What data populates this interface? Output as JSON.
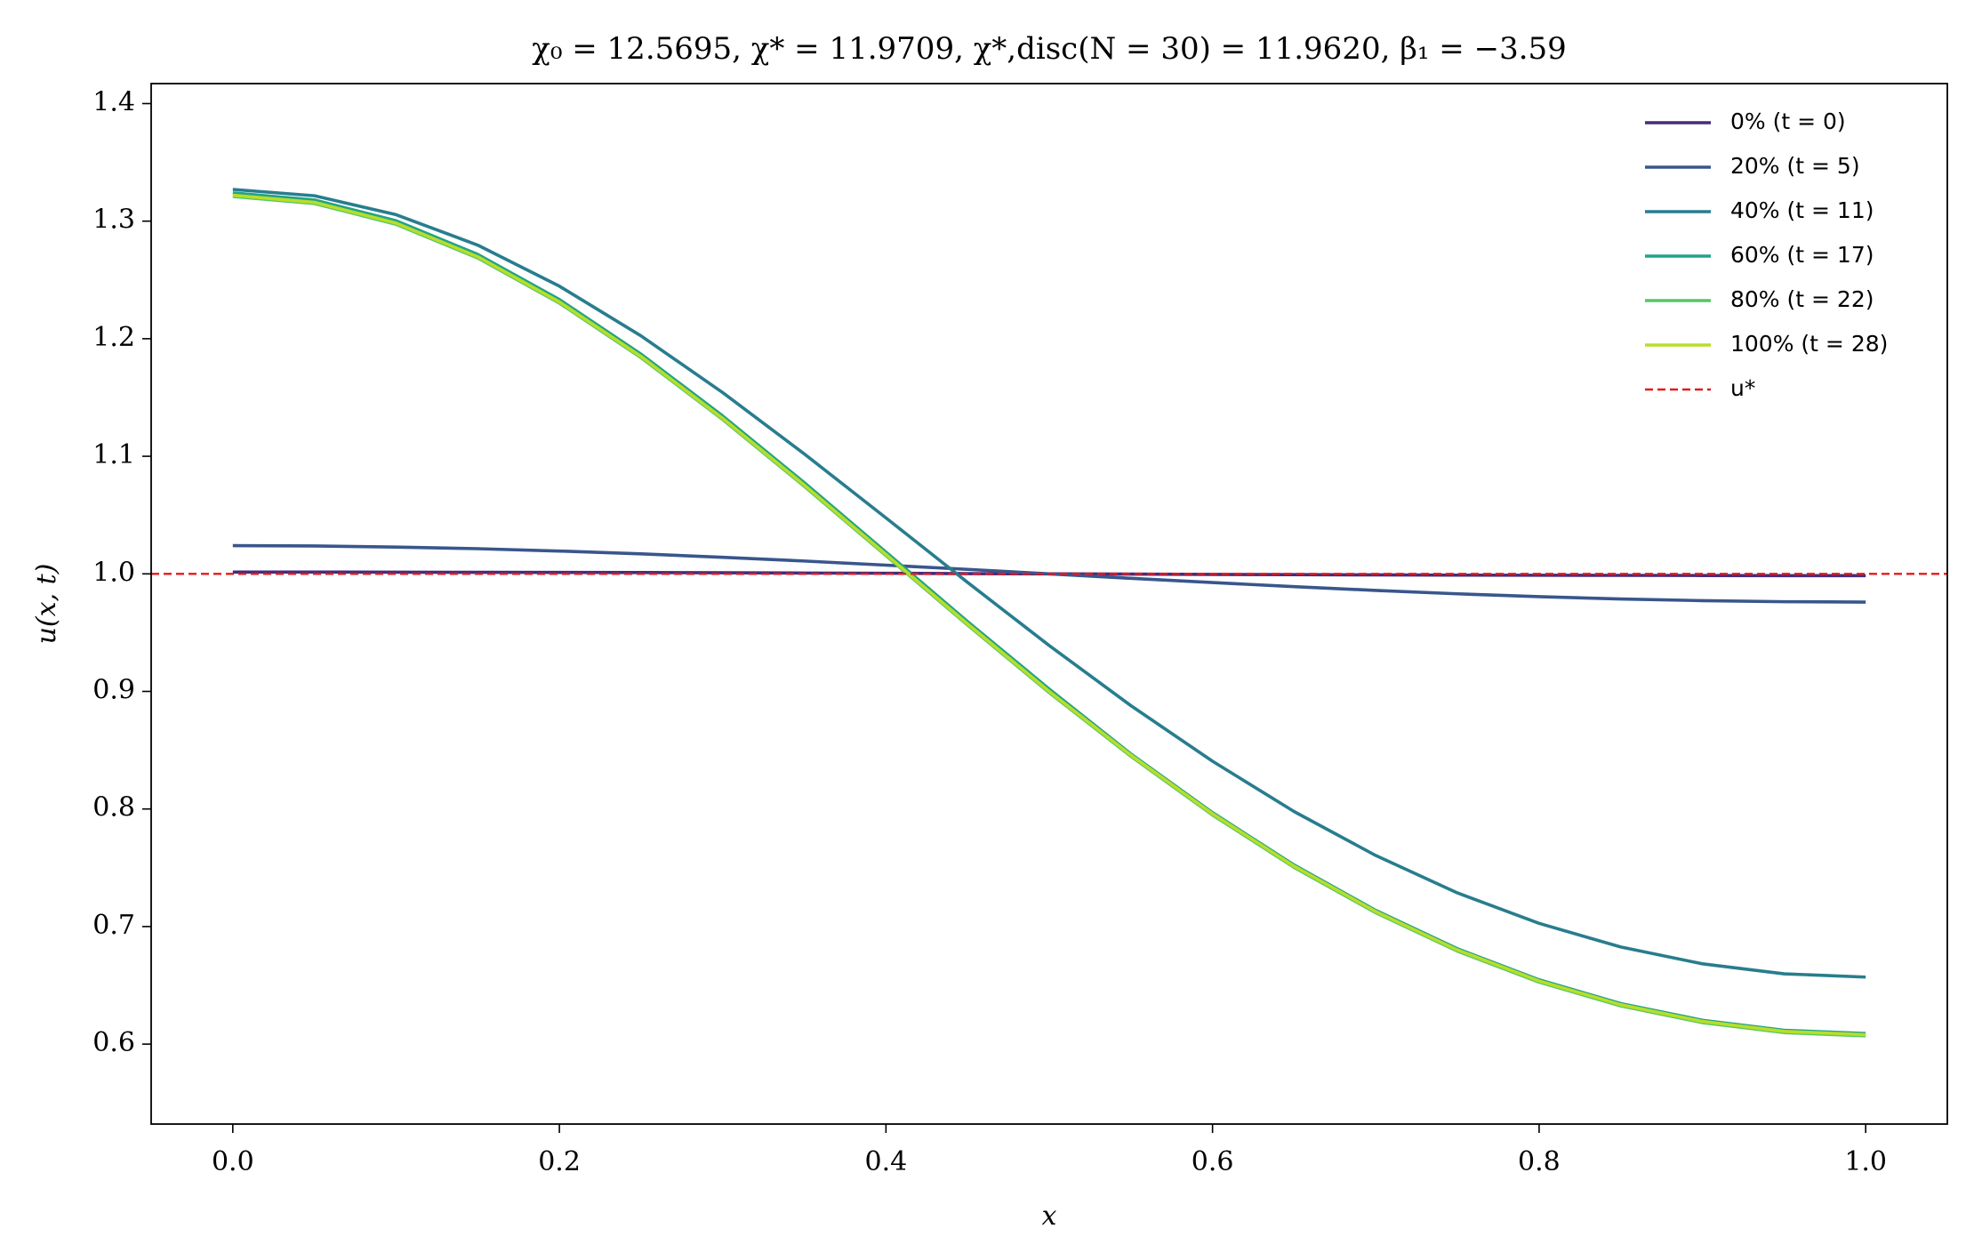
{
  "chart_data": {
    "type": "line",
    "title": "χ₀ = 12.5695,  χ* = 11.9709,  χ*,disc(N = 30) = 11.9620,  β₁ = −3.59",
    "x_label": "x",
    "y_label": "u(x, t)",
    "x": [
      0,
      0.05,
      0.1,
      0.15,
      0.2,
      0.25,
      0.3,
      0.35,
      0.4,
      0.45,
      0.5,
      0.55,
      0.6,
      0.65,
      0.7,
      0.75,
      0.8,
      0.85,
      0.9,
      0.95,
      1
    ],
    "series": [
      {
        "name": "0% (t = 0)",
        "color": "#472c7a",
        "values": [
          1.0015,
          1.0015,
          1.0014,
          1.0013,
          1.0012,
          1.0011,
          1.0009,
          1.0007,
          1.0005,
          1.0002,
          1.0,
          0.9998,
          0.9995,
          0.9993,
          0.9991,
          0.9989,
          0.9988,
          0.9987,
          0.9986,
          0.9985,
          0.9985
        ]
      },
      {
        "name": "20% (t = 5)",
        "color": "#39568c",
        "values": [
          1.024,
          1.0237,
          1.0228,
          1.0214,
          1.0194,
          1.017,
          1.0141,
          1.0109,
          1.0074,
          1.0038,
          1.0,
          0.9962,
          0.9926,
          0.9891,
          0.9859,
          0.983,
          0.9806,
          0.9786,
          0.9772,
          0.9763,
          0.976
        ]
      },
      {
        "name": "40% (t = 11)",
        "color": "#287d8e",
        "values": [
          1.327,
          1.3216,
          1.3055,
          1.2796,
          1.2447,
          1.2024,
          1.1542,
          1.102,
          1.0476,
          0.9927,
          0.939,
          0.8879,
          0.8406,
          0.7978,
          0.7604,
          0.7286,
          0.7027,
          0.6826,
          0.6683,
          0.6598,
          0.657
        ]
      },
      {
        "name": "60% (t = 17)",
        "color": "#20a386",
        "values": [
          1.324,
          1.318,
          1.3003,
          1.2717,
          1.2333,
          1.1869,
          1.1343,
          1.0775,
          1.0185,
          0.9594,
          0.902,
          0.8468,
          0.7969,
          0.7523,
          0.7137,
          0.6811,
          0.6547,
          0.6345,
          0.6203,
          0.6118,
          0.609
        ]
      },
      {
        "name": "80% (t = 22)",
        "color": "#56c667",
        "values": [
          1.321,
          1.315,
          1.2973,
          1.2687,
          1.2303,
          1.1839,
          1.1313,
          1.0745,
          1.0155,
          0.9564,
          0.899,
          0.8448,
          0.7949,
          0.7503,
          0.7117,
          0.6791,
          0.6527,
          0.6325,
          0.6183,
          0.6098,
          0.607
        ]
      },
      {
        "name": "100% (t = 28)",
        "color": "#b8de29",
        "values": [
          1.322,
          1.316,
          1.2983,
          1.2697,
          1.2313,
          1.1849,
          1.1323,
          1.0755,
          1.0165,
          0.9574,
          0.9,
          0.8458,
          0.7959,
          0.7513,
          0.7127,
          0.6801,
          0.6537,
          0.6335,
          0.6193,
          0.6108,
          0.608
        ]
      }
    ],
    "hlines": [
      {
        "name": "u*",
        "value": 1,
        "color": "#e41a1c",
        "dashed": true
      }
    ],
    "xlim": [
      -0.05,
      1.05
    ],
    "xticks": [
      {
        "value": 0,
        "label": "0.0"
      },
      0.2,
      0.4,
      0.6,
      0.8,
      {
        "value": 1,
        "label": "1.0"
      }
    ],
    "ylim": [
      0.532,
      1.417
    ],
    "yticks": [
      0.6,
      0.7,
      0.8,
      0.9,
      {
        "value": 1,
        "label": "1.0"
      },
      1.1,
      1.2,
      1.3,
      1.4
    ],
    "grid": false,
    "legend": "upper right"
  }
}
